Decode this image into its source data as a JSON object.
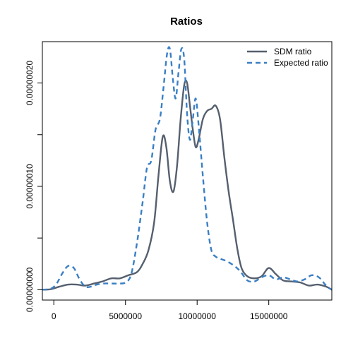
{
  "chart_data": {
    "type": "line",
    "title": "Ratios",
    "xlabel": "",
    "ylabel": "",
    "xlim": [
      -800000,
      19400000
    ],
    "ylim": [
      -1e-08,
      2.4e-07
    ],
    "x_ticks": [
      {
        "value": 0,
        "label": "0"
      },
      {
        "value": 5000000,
        "label": "5000000"
      },
      {
        "value": 10000000,
        "label": "10000000"
      },
      {
        "value": 15000000,
        "label": "15000000"
      }
    ],
    "y_ticks": [
      {
        "value": 0,
        "label": "0.00000000"
      },
      {
        "value": 5e-08,
        "label": ""
      },
      {
        "value": 1e-07,
        "label": "0.00000010"
      },
      {
        "value": 1.5e-07,
        "label": ""
      },
      {
        "value": 2e-07,
        "label": "0.00000020"
      }
    ],
    "grid": false,
    "legend_position": "top-right",
    "series": [
      {
        "name": "SDM ratio",
        "color": "#555f6e",
        "line_style": "solid",
        "x": [
          -800000,
          -200000,
          400000,
          1000000,
          1600000,
          2200000,
          2800000,
          3400000,
          4000000,
          4600000,
          5200000,
          5800000,
          6200000,
          6600000,
          7000000,
          7300000,
          7600000,
          7850000,
          8100000,
          8350000,
          8600000,
          8850000,
          9100000,
          9300000,
          9500000,
          9700000,
          9900000,
          10100000,
          10400000,
          10700000,
          11000000,
          11300000,
          11600000,
          11900000,
          12200000,
          12500000,
          12800000,
          13100000,
          13500000,
          14000000,
          14500000,
          15000000,
          15500000,
          16000000,
          16600000,
          17200000,
          17800000,
          18400000,
          19000000,
          19400000
        ],
        "y": [
          0,
          5e-10,
          3e-09,
          5e-09,
          5e-09,
          4e-09,
          6e-09,
          8e-09,
          1.1e-08,
          1.1e-08,
          1.4e-08,
          1.7e-08,
          2.5e-08,
          3.8e-08,
          6.5e-08,
          1.1e-07,
          1.48e-07,
          1.38e-07,
          1.05e-07,
          9.5e-08,
          1.2e-07,
          1.65e-07,
          1.98e-07,
          2e-07,
          1.78e-07,
          1.55e-07,
          1.38e-07,
          1.45e-07,
          1.65e-07,
          1.73e-07,
          1.75e-07,
          1.78e-07,
          1.65e-07,
          1.28e-07,
          9.5e-08,
          6.8e-08,
          4e-08,
          2.1e-08,
          1.3e-08,
          1.1e-08,
          1.3e-08,
          2.1e-08,
          1.5e-08,
          9e-09,
          8e-09,
          7e-09,
          4e-09,
          5e-09,
          3e-09,
          0
        ]
      },
      {
        "name": "Expected ratio",
        "color": "#3a7fc5",
        "line_style": "dashed",
        "x": [
          -800000,
          -200000,
          200000,
          600000,
          1000000,
          1400000,
          1800000,
          2200000,
          2600000,
          3000000,
          3500000,
          4000000,
          4500000,
          5000000,
          5400000,
          5800000,
          6200000,
          6500000,
          6800000,
          7100000,
          7400000,
          7650000,
          7900000,
          8100000,
          8300000,
          8500000,
          8700000,
          8900000,
          9100000,
          9300000,
          9500000,
          9700000,
          9900000,
          10100000,
          10400000,
          10700000,
          11000000,
          11300000,
          11600000,
          12000000,
          12500000,
          13000000,
          13500000,
          14000000,
          14500000,
          15000000,
          15500000,
          16000000,
          16500000,
          17000000,
          17500000,
          18000000,
          18500000,
          19000000,
          19400000
        ],
        "y": [
          0,
          1e-09,
          6e-09,
          1.6e-08,
          2.3e-08,
          2.1e-08,
          1e-08,
          3e-09,
          3e-09,
          5e-09,
          6e-09,
          6e-09,
          6e-09,
          7e-09,
          1.5e-08,
          4.5e-08,
          8.5e-08,
          1.18e-07,
          1.25e-07,
          1.55e-07,
          1.65e-07,
          1.95e-07,
          2.28e-07,
          2.33e-07,
          2.05e-07,
          1.85e-07,
          2.1e-07,
          2.33e-07,
          2.23e-07,
          1.7e-07,
          1.45e-07,
          1.65e-07,
          1.85e-07,
          1.6e-07,
          1.1e-07,
          6.5e-08,
          3.8e-08,
          3.2e-08,
          3e-08,
          2.8e-08,
          2.4e-08,
          1.8e-08,
          9e-09,
          8e-09,
          1.2e-08,
          1.4e-08,
          1e-08,
          1.2e-08,
          1e-08,
          8e-09,
          1e-08,
          1.4e-08,
          1.2e-08,
          4e-09,
          0
        ]
      }
    ]
  }
}
